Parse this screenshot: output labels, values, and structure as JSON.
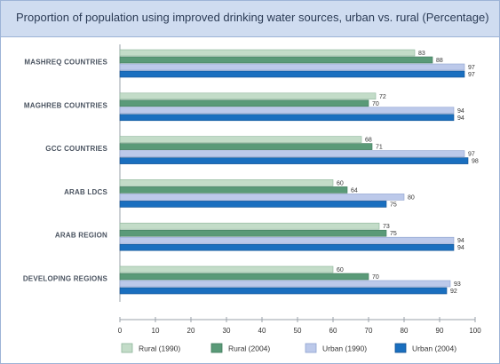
{
  "header": {
    "title": "Proportion of population using improved drinking water sources, urban vs. rural (Percentage)"
  },
  "colors": {
    "rural_1990": "#c3dcc8",
    "rural_2004": "#5a9a78",
    "urban_1990": "#bcc9ea",
    "urban_2004": "#1a6fbf",
    "title_bg": "#cfdcf0",
    "frame": "#9db3d6"
  },
  "chart_data": {
    "type": "bar",
    "orientation": "horizontal",
    "title": "Proportion of population using improved drinking water sources, urban vs. rural (Percentage)",
    "categories": [
      "Mashreq Countries",
      "Maghreb Countries",
      "GCC Countries",
      "Arab LDCs",
      "Arab Region",
      "Developing Regions"
    ],
    "series": [
      {
        "name": "Rural (1990)",
        "values": [
          83,
          72,
          68,
          60,
          73,
          60
        ]
      },
      {
        "name": "Rural (2004)",
        "values": [
          88,
          70,
          71,
          64,
          75,
          70
        ]
      },
      {
        "name": "Urban (1990)",
        "values": [
          97,
          94,
          97,
          80,
          94,
          93
        ]
      },
      {
        "name": "Urban (2004)",
        "values": [
          97,
          94,
          98,
          75,
          94,
          92
        ]
      }
    ],
    "xlim": [
      0,
      100
    ],
    "xticks": [
      0,
      10,
      20,
      30,
      40,
      50,
      60,
      70,
      80,
      90,
      100
    ],
    "grid": false,
    "legend": "bottom"
  }
}
